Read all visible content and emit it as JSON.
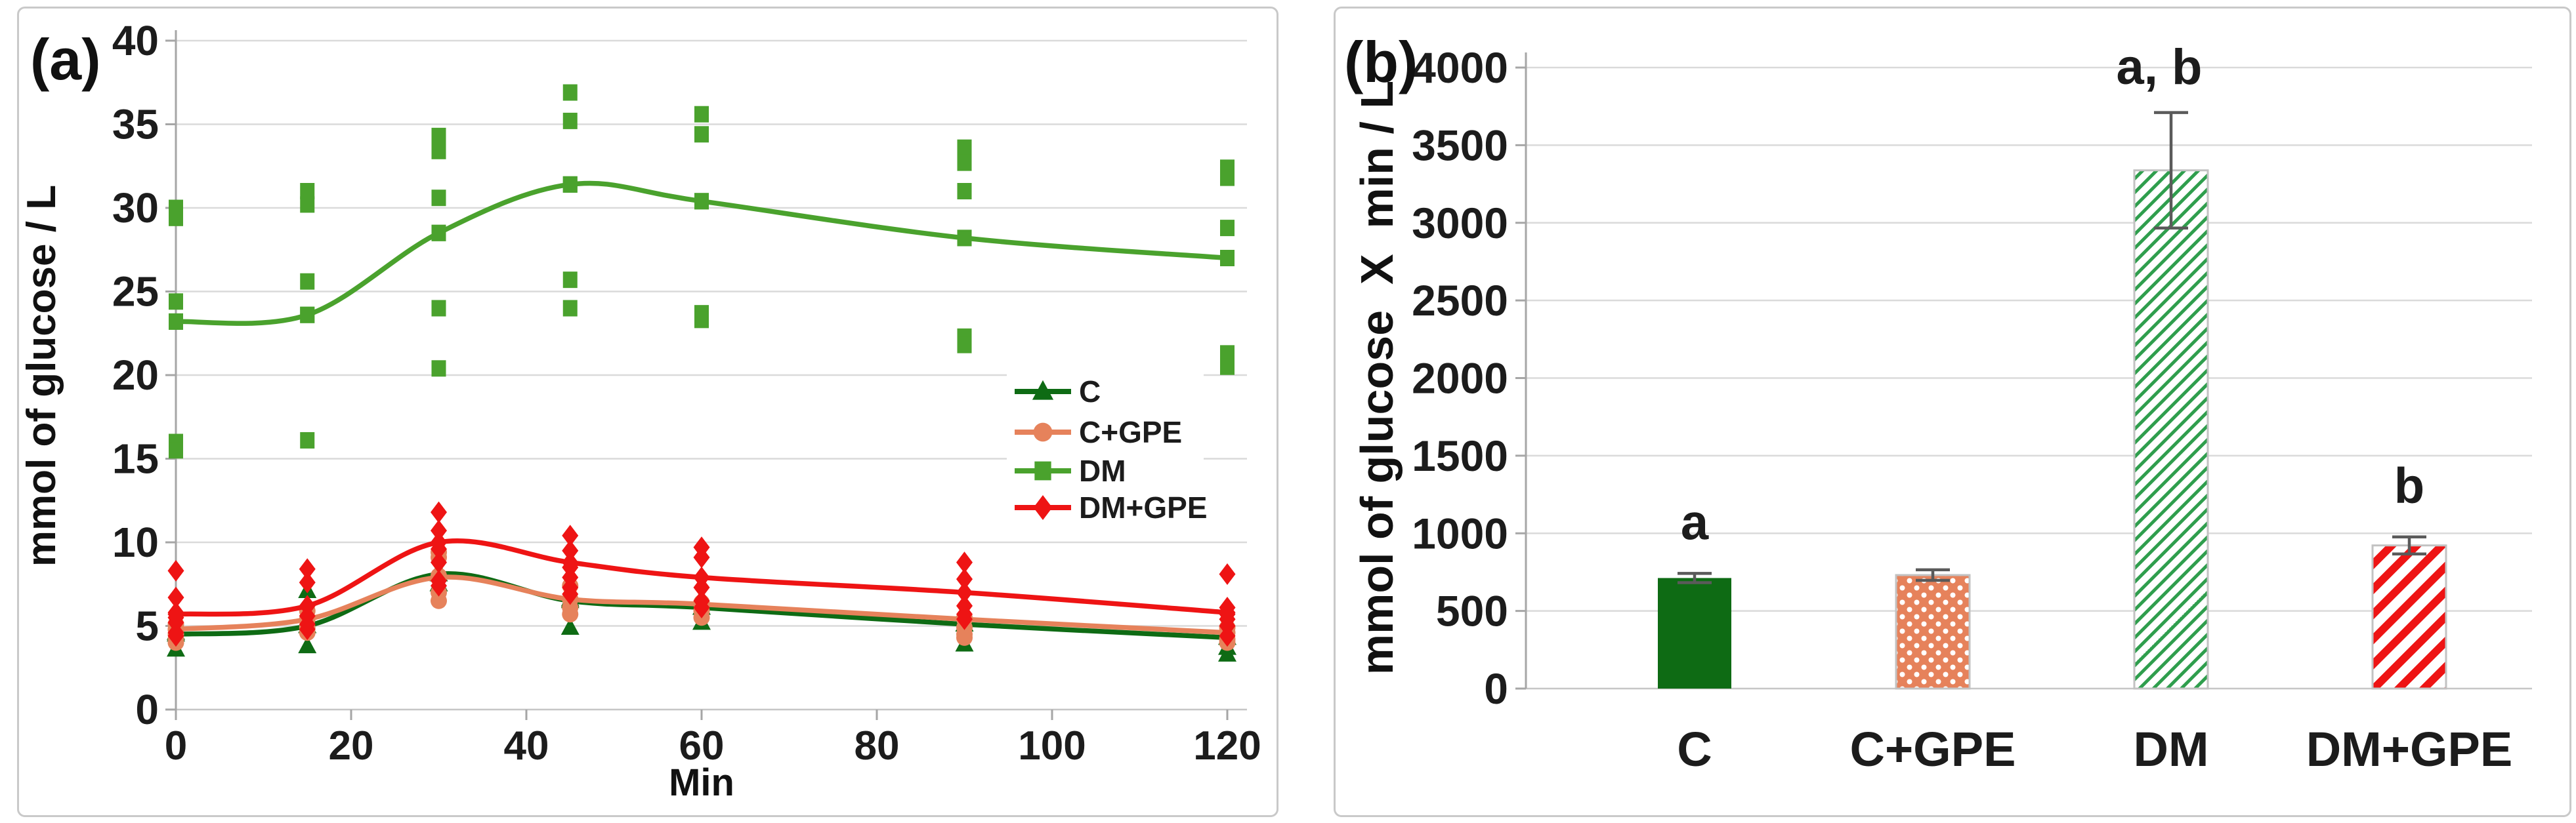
{
  "figure": {
    "background": "#ffffff",
    "colors": {
      "grid": "#dadada",
      "axis": "#a6a6a6",
      "baseline": "#c6c6c6",
      "error_bar": "#5a5a5a",
      "text": "#1c1c1c",
      "panel_border": "#c9c9c9",
      "legend_background": "#ffffff"
    }
  },
  "chart_data": [
    {
      "type": "scatter",
      "panel_label": "(a)",
      "title": "",
      "xlabel": "Min",
      "ylabel": "mmol of glucose / L",
      "xlim": [
        0,
        120
      ],
      "ylim": [
        0,
        40
      ],
      "xticks": [
        0,
        20,
        40,
        60,
        80,
        100,
        120
      ],
      "yticks": [
        0,
        5,
        10,
        15,
        20,
        25,
        30,
        35,
        40
      ],
      "grid": true,
      "legend_position": "right-middle",
      "x": [
        0,
        15,
        30,
        45,
        60,
        90,
        120
      ],
      "series": [
        {
          "name": "C",
          "marker": "triangle",
          "color": "#0e6b14",
          "line": [
            4.5,
            5.0,
            8.1,
            6.5,
            6.1,
            5.1,
            4.3
          ],
          "points": [
            [
              4.6,
              3.6
            ],
            [
              7.1,
              5.0,
              3.8
            ],
            [
              8.3,
              7.5
            ],
            [
              6.6,
              4.9
            ],
            [
              5.2
            ],
            [
              3.9
            ],
            [
              3.7,
              3.3
            ]
          ]
        },
        {
          "name": "C+GPE",
          "marker": "circle",
          "color": "#e6825b",
          "line": [
            4.8,
            5.4,
            7.9,
            6.6,
            6.3,
            5.4,
            4.6
          ],
          "points": [
            [
              5.1,
              4.8,
              4.5,
              4.2,
              4.0
            ],
            [
              5.9,
              4.9,
              4.6
            ],
            [
              9.4,
              9.1,
              8.0,
              7.0,
              6.5
            ],
            [
              7.4,
              6.6,
              6.1,
              5.7
            ],
            [
              6.4,
              5.9,
              5.5
            ],
            [
              5.5,
              4.9,
              4.5,
              4.3
            ],
            [
              4.9,
              4.2,
              4.0
            ]
          ]
        },
        {
          "name": "DM",
          "marker": "square",
          "color": "#4aa22d",
          "line": [
            23.2,
            23.6,
            28.5,
            31.4,
            30.4,
            28.2,
            27.0
          ],
          "points": [
            [
              30.0,
              29.4,
              24.4,
              23.2,
              16.0,
              15.5
            ],
            [
              31.0,
              30.2,
              25.6,
              23.6,
              16.1
            ],
            [
              34.3,
              33.4,
              30.6,
              28.5,
              24.0,
              20.4
            ],
            [
              36.9,
              35.2,
              31.4,
              25.7,
              24.0
            ],
            [
              35.6,
              34.4,
              30.4,
              23.7,
              23.3
            ],
            [
              33.6,
              32.7,
              31.0,
              28.2,
              22.3,
              21.8
            ],
            [
              32.4,
              31.8,
              28.8,
              21.3,
              20.5
            ]
          ]
        },
        {
          "name": "DM+GPE",
          "marker": "diamond",
          "color": "#ee1414",
          "line": [
            5.7,
            6.2,
            10.0,
            8.8,
            7.9,
            7.0,
            5.8
          ],
          "points": [
            [
              8.3,
              6.7,
              5.8,
              5.5,
              5.2,
              4.6,
              4.4
            ],
            [
              8.4,
              7.6,
              6.2,
              5.6,
              5.1,
              4.8
            ],
            [
              11.8,
              10.7,
              10.0,
              9.6,
              8.8,
              7.7,
              7.4
            ],
            [
              10.4,
              9.5,
              8.5,
              7.9,
              7.3,
              6.9
            ],
            [
              9.7,
              9.1,
              7.3,
              6.5,
              6.1
            ],
            [
              8.8,
              7.8,
              6.2,
              5.7,
              5.4
            ],
            [
              8.1,
              6.1,
              5.7,
              5.4,
              5.0,
              4.4
            ]
          ]
        }
      ]
    },
    {
      "type": "bar",
      "panel_label": "(b)",
      "title": "",
      "xlabel": "",
      "ylabel": "mmol of glucose  X  min / L",
      "ylim": [
        0,
        4000
      ],
      "yticks": [
        0,
        500,
        1000,
        1500,
        2000,
        2500,
        3000,
        3500,
        4000
      ],
      "grid": true,
      "categories": [
        "C",
        "C+GPE",
        "DM",
        "DM+GPE"
      ],
      "values": [
        712,
        731,
        3338,
        922
      ],
      "errors": [
        30,
        34,
        372,
        55
      ],
      "sig_labels": [
        "a",
        "",
        "a, b",
        "b"
      ],
      "bar_styles": [
        {
          "fill": "solid",
          "color": "#0e6b14"
        },
        {
          "fill": "dots",
          "color": "#e6825b",
          "dot_color": "#ffffff"
        },
        {
          "fill": "hatch",
          "color": "#2f9e4d",
          "background": "#ffffff"
        },
        {
          "fill": "stripes",
          "color": "#ee1414",
          "background": "#ffffff"
        }
      ]
    }
  ]
}
